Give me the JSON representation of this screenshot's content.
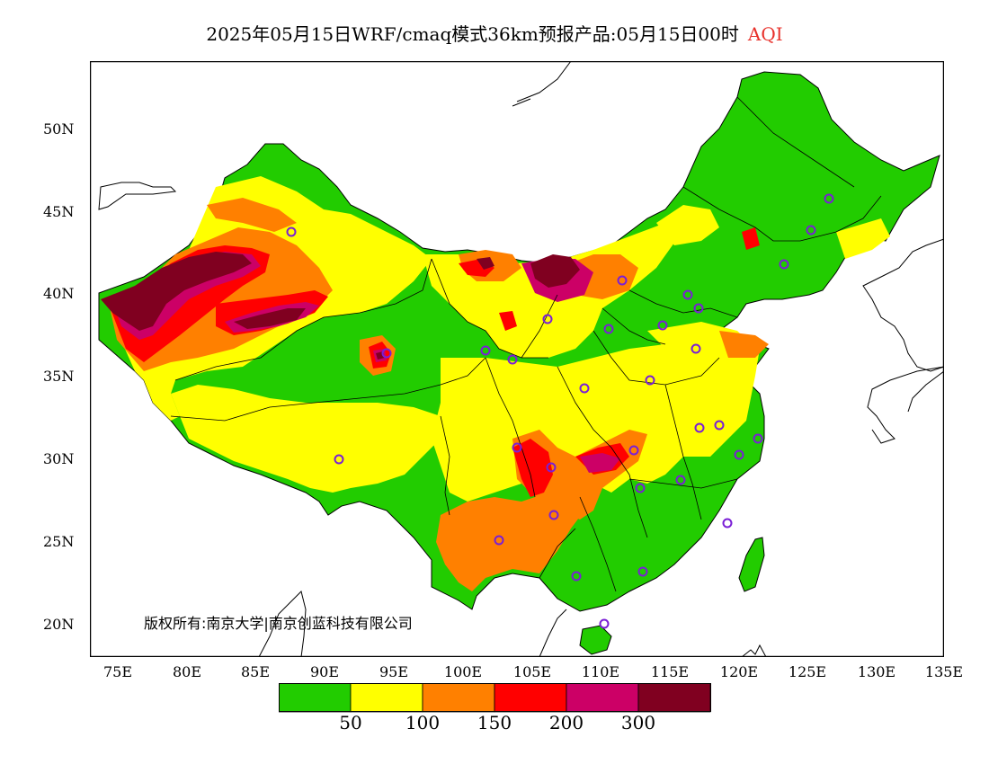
{
  "title": {
    "main": "2025年05月15日WRF/cmaq模式36km预报产品:05月15日00时",
    "variable": "AQI"
  },
  "axes": {
    "y_labels": [
      "50N",
      "45N",
      "40N",
      "35N",
      "30N",
      "25N",
      "20N"
    ],
    "x_labels": [
      "75E",
      "80E",
      "85E",
      "90E",
      "95E",
      "100E",
      "105E",
      "110E",
      "115E",
      "120E",
      "125E",
      "130E",
      "135E"
    ],
    "lon_range": [
      73,
      135
    ],
    "lat_range": [
      18,
      54
    ]
  },
  "copyright": "版权所有:南京大学|南京创蓝科技有限公司",
  "legend": {
    "colors": [
      "#22cc00",
      "#ffff00",
      "#ff8000",
      "#ff0000",
      "#cc0066",
      "#800020"
    ],
    "labels": [
      "50",
      "100",
      "150",
      "200",
      "300"
    ]
  },
  "colors": {
    "good": "#22cc00",
    "moderate": "#ffff00",
    "sensitive": "#ff8000",
    "unhealthy": "#ff0000",
    "very_unhealthy": "#cc0066",
    "hazardous": "#800020",
    "station_marker": "#7a1fd6"
  }
}
